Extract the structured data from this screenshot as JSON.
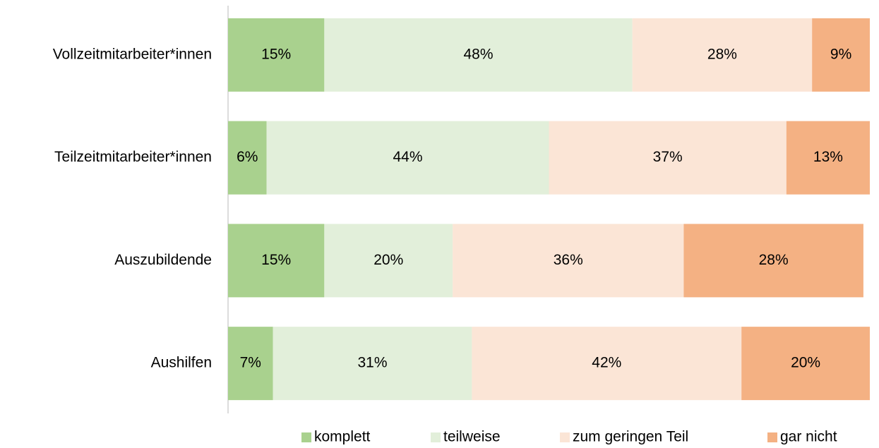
{
  "chart_data": {
    "type": "stacked-barh",
    "categories": [
      "Vollzeitmitarbeiter*innen",
      "Teilzeitmitarbeiter*innen",
      "Auszubildende",
      "Aushilfen"
    ],
    "series": [
      {
        "name": "komplett",
        "color": "#a9d18e",
        "values": [
          15,
          6,
          15,
          7
        ],
        "value_labels": [
          "15%",
          "6%",
          "15%",
          "7%"
        ]
      },
      {
        "name": "teilweise",
        "color": "#e2efda",
        "values": [
          48,
          44,
          20,
          31
        ],
        "value_labels": [
          "48%",
          "44%",
          "20%",
          "31%"
        ]
      },
      {
        "name": "zum geringen Teil",
        "color": "#fbe5d6",
        "values": [
          28,
          37,
          36,
          42
        ],
        "value_labels": [
          "28%",
          "37%",
          "36%",
          "42%"
        ]
      },
      {
        "name": "gar nicht",
        "color": "#f4b183",
        "values": [
          9,
          13,
          28,
          20
        ],
        "value_labels": [
          "9%",
          "13%",
          "28%",
          "20%"
        ]
      }
    ],
    "xlim": [
      0,
      100
    ],
    "legend": "bottom"
  }
}
